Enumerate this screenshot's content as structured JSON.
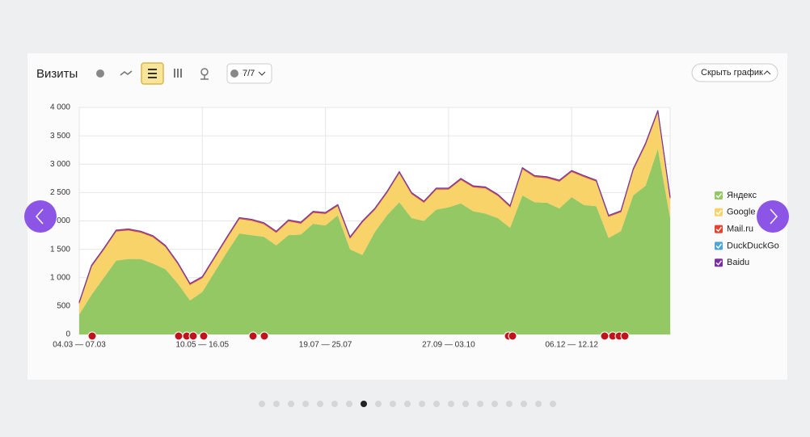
{
  "header": {
    "title": "Визиты",
    "annotations_filter": "7/7",
    "hide_button": "Скрыть график"
  },
  "chart_data": {
    "type": "stacked_area",
    "categories": [
      "04.03 — 07.03",
      null,
      null,
      null,
      null,
      null,
      null,
      null,
      null,
      null,
      "10.05 — 16.05",
      null,
      null,
      null,
      null,
      null,
      null,
      null,
      null,
      null,
      "19.07 — 25.07",
      null,
      null,
      null,
      null,
      null,
      null,
      null,
      null,
      null,
      "27.09 — 03.10",
      null,
      null,
      null,
      null,
      null,
      null,
      null,
      null,
      null,
      "06.12 — 12.12",
      null,
      null,
      null,
      null,
      null,
      null,
      null,
      null
    ],
    "series": [
      {
        "name": "Яндекс",
        "color": "#94c865",
        "values": [
          350,
          700,
          1000,
          1300,
          1330,
          1330,
          1250,
          1150,
          900,
          600,
          750,
          1100,
          1450,
          1780,
          1750,
          1720,
          1570,
          1750,
          1760,
          1950,
          1920,
          2100,
          1500,
          1400,
          1800,
          2100,
          2330,
          2050,
          2000,
          2200,
          2240,
          2310,
          2170,
          2130,
          2050,
          1880,
          2450,
          2330,
          2320,
          2220,
          2420,
          2280,
          2260,
          1700,
          1820,
          2450,
          2620,
          3270,
          2050
        ]
      },
      {
        "name": "Google",
        "color": "#f7d36a",
        "values": [
          200,
          500,
          500,
          520,
          510,
          470,
          470,
          400,
          350,
          280,
          250,
          250,
          250,
          260,
          260,
          230,
          230,
          250,
          200,
          200,
          210,
          170,
          200,
          580,
          400,
          400,
          520,
          430,
          330,
          360,
          320,
          420,
          430,
          450,
          400,
          370,
          470,
          450,
          440,
          480,
          450,
          500,
          440,
          380,
          340,
          450,
          730,
          660,
          350
        ]
      },
      {
        "name": "Mail.ru",
        "color": "#e4412f",
        "values": [
          15,
          15,
          15,
          15,
          15,
          15,
          15,
          15,
          15,
          15,
          15,
          15,
          15,
          15,
          15,
          15,
          15,
          15,
          15,
          15,
          15,
          15,
          15,
          15,
          15,
          15,
          15,
          15,
          15,
          15,
          15,
          15,
          15,
          15,
          15,
          15,
          15,
          15,
          15,
          15,
          15,
          15,
          15,
          15,
          15,
          15,
          15,
          15,
          15
        ]
      },
      {
        "name": "DuckDuckGo",
        "color": "#4ea5d9",
        "values": [
          3,
          3,
          3,
          3,
          3,
          3,
          3,
          3,
          3,
          3,
          3,
          3,
          3,
          3,
          3,
          3,
          3,
          3,
          3,
          3,
          3,
          3,
          3,
          3,
          3,
          3,
          3,
          3,
          3,
          3,
          3,
          3,
          3,
          3,
          3,
          3,
          3,
          3,
          3,
          3,
          3,
          3,
          3,
          3,
          3,
          3,
          3,
          3,
          3
        ]
      },
      {
        "name": "Baidu",
        "color": "#7b2e9e",
        "values": [
          1,
          1,
          1,
          1,
          1,
          1,
          1,
          1,
          1,
          1,
          1,
          1,
          1,
          1,
          1,
          1,
          1,
          1,
          1,
          1,
          1,
          1,
          1,
          1,
          1,
          1,
          1,
          1,
          1,
          1,
          1,
          1,
          1,
          1,
          1,
          1,
          1,
          1,
          1,
          1,
          1,
          1,
          1,
          1,
          1,
          1,
          1,
          1,
          1
        ]
      }
    ],
    "ylim": [
      0,
      4000
    ],
    "yticks": [
      0,
      500,
      {
        "value": 1000,
        "label": "1 000"
      },
      {
        "value": 1500,
        "label": "1 500"
      },
      {
        "value": 2000,
        "label": "2 000"
      },
      {
        "value": 2500,
        "label": "2 500"
      },
      {
        "value": 3000,
        "label": "3 000"
      },
      {
        "value": 3500,
        "label": "3 500"
      },
      {
        "value": 4000,
        "label": "4 000"
      }
    ],
    "grid": true,
    "legend": "right"
  }
}
